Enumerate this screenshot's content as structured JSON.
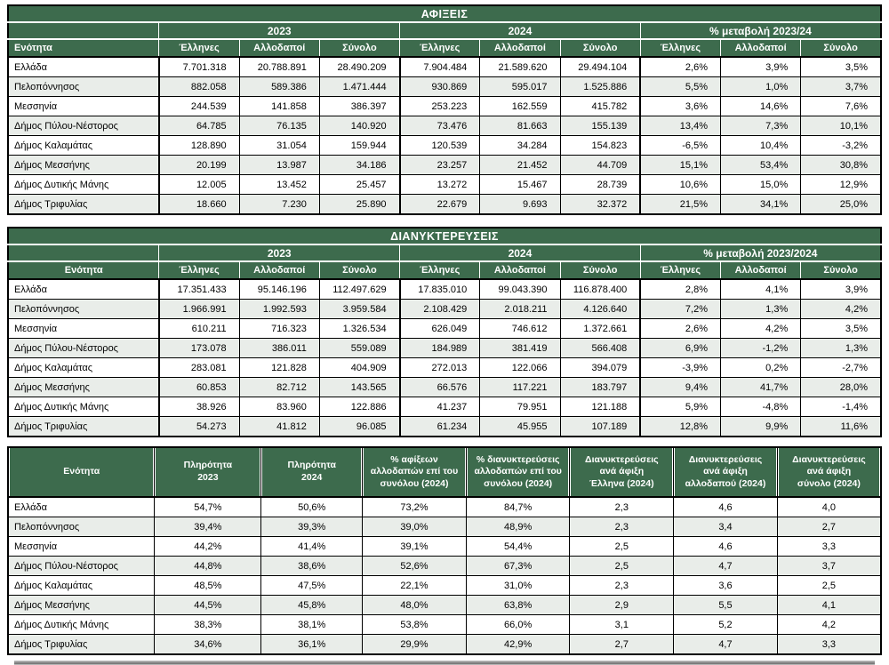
{
  "colors": {
    "header_green": "#3d6b4d",
    "row_alternate": "#e9ede9",
    "grid_line": "#000000"
  },
  "arrivals": {
    "title": "ΑΦΙΞΕΙΣ",
    "entity_header": "Ενότητα",
    "groups": [
      "2023",
      "2024",
      "% μεταβολή 2023/24"
    ],
    "sub_headers": [
      "Έλληνες",
      "Αλλοδαποί",
      "Σύνολο"
    ],
    "rows": [
      {
        "name": "Ελλάδα",
        "values": [
          "7.701.318",
          "20.788.891",
          "28.490.209",
          "7.904.484",
          "21.589.620",
          "29.494.104",
          "2,6%",
          "3,9%",
          "3,5%"
        ]
      },
      {
        "name": "Πελοπόννησος",
        "values": [
          "882.058",
          "589.386",
          "1.471.444",
          "930.869",
          "595.017",
          "1.525.886",
          "5,5%",
          "1,0%",
          "3,7%"
        ]
      },
      {
        "name": "Μεσσηνία",
        "values": [
          "244.539",
          "141.858",
          "386.397",
          "253.223",
          "162.559",
          "415.782",
          "3,6%",
          "14,6%",
          "7,6%"
        ]
      },
      {
        "name": "Δήμος Πύλου-Νέστορος",
        "values": [
          "64.785",
          "76.135",
          "140.920",
          "73.476",
          "81.663",
          "155.139",
          "13,4%",
          "7,3%",
          "10,1%"
        ]
      },
      {
        "name": "Δήμος Καλαμάτας",
        "values": [
          "128.890",
          "31.054",
          "159.944",
          "120.539",
          "34.284",
          "154.823",
          "-6,5%",
          "10,4%",
          "-3,2%"
        ]
      },
      {
        "name": "Δήμος Μεσσήνης",
        "values": [
          "20.199",
          "13.987",
          "34.186",
          "23.257",
          "21.452",
          "44.709",
          "15,1%",
          "53,4%",
          "30,8%"
        ]
      },
      {
        "name": "Δήμος Δυτικής Μάνης",
        "values": [
          "12.005",
          "13.452",
          "25.457",
          "13.272",
          "15.467",
          "28.739",
          "10,6%",
          "15,0%",
          "12,9%"
        ]
      },
      {
        "name": "Δήμος Τριφυλίας",
        "values": [
          "18.660",
          "7.230",
          "25.890",
          "22.679",
          "9.693",
          "32.372",
          "21,5%",
          "34,1%",
          "25,0%"
        ]
      }
    ]
  },
  "overnights": {
    "title": "ΔΙΑΝΥΚΤΕΡΕΥΣΕΙΣ",
    "entity_header": "Ενότητα",
    "groups": [
      "2023",
      "2024",
      "% μεταβολή 2023/2024"
    ],
    "sub_headers": [
      "Έλληνες",
      "Αλλοδαποί",
      "Σύνολο"
    ],
    "rows": [
      {
        "name": "Ελλάδα",
        "values": [
          "17.351.433",
          "95.146.196",
          "112.497.629",
          "17.835.010",
          "99.043.390",
          "116.878.400",
          "2,8%",
          "4,1%",
          "3,9%"
        ]
      },
      {
        "name": "Πελοπόννησος",
        "values": [
          "1.966.991",
          "1.992.593",
          "3.959.584",
          "2.108.429",
          "2.018.211",
          "4.126.640",
          "7,2%",
          "1,3%",
          "4,2%"
        ]
      },
      {
        "name": "Μεσσηνία",
        "values": [
          "610.211",
          "716.323",
          "1.326.534",
          "626.049",
          "746.612",
          "1.372.661",
          "2,6%",
          "4,2%",
          "3,5%"
        ]
      },
      {
        "name": "Δήμος Πύλου-Νέστορος",
        "values": [
          "173.078",
          "386.011",
          "559.089",
          "184.989",
          "381.419",
          "566.408",
          "6,9%",
          "-1,2%",
          "1,3%"
        ]
      },
      {
        "name": "Δήμος Καλαμάτας",
        "values": [
          "283.081",
          "121.828",
          "404.909",
          "272.013",
          "122.066",
          "394.079",
          "-3,9%",
          "0,2%",
          "-2,7%"
        ]
      },
      {
        "name": "Δήμος Μεσσήνης",
        "values": [
          "60.853",
          "82.712",
          "143.565",
          "66.576",
          "117.221",
          "183.797",
          "9,4%",
          "41,7%",
          "28,0%"
        ]
      },
      {
        "name": "Δήμος Δυτικής Μάνης",
        "values": [
          "38.926",
          "83.960",
          "122.886",
          "41.237",
          "79.951",
          "121.188",
          "5,9%",
          "-4,8%",
          "-1,4%"
        ]
      },
      {
        "name": "Δήμος Τριφυλίας",
        "values": [
          "54.273",
          "41.812",
          "96.085",
          "61.234",
          "45.955",
          "107.189",
          "12,8%",
          "9,9%",
          "11,6%"
        ]
      }
    ]
  },
  "metrics": {
    "headers": [
      "Ενότητα",
      "Πληρότητα\n2023",
      "Πληρότητα\n2024",
      "% αφίξεων\nαλλοδαπών επί του\nσυνόλου (2024)",
      "% διανυκτερεύσεις\nαλλοδαπών επί του\nσυνόλου (2024)",
      "Διανυκτερεύσεις\nανά άφιξη\nΈλληνα (2024)",
      "Διανυκτερεύσεις\nανά άφιξη\nαλλοδαπού (2024)",
      "Διανυκτερεύσεις\nανά άφιξη\nσύνολο (2024)"
    ],
    "rows": [
      {
        "name": "Ελλάδα",
        "values": [
          "54,7%",
          "50,6%",
          "73,2%",
          "84,7%",
          "2,3",
          "4,6",
          "4,0"
        ]
      },
      {
        "name": "Πελοπόννησος",
        "values": [
          "39,4%",
          "39,3%",
          "39,0%",
          "48,9%",
          "2,3",
          "3,4",
          "2,7"
        ]
      },
      {
        "name": "Μεσσηνία",
        "values": [
          "44,2%",
          "41,4%",
          "39,1%",
          "54,4%",
          "2,5",
          "4,6",
          "3,3"
        ]
      },
      {
        "name": "Δήμος Πύλου-Νέστορος",
        "values": [
          "44,8%",
          "38,6%",
          "52,6%",
          "67,3%",
          "2,5",
          "4,7",
          "3,7"
        ]
      },
      {
        "name": "Δήμος Καλαμάτας",
        "values": [
          "48,5%",
          "47,5%",
          "22,1%",
          "31,0%",
          "2,3",
          "3,6",
          "2,5"
        ]
      },
      {
        "name": "Δήμος Μεσσήνης",
        "values": [
          "44,5%",
          "45,8%",
          "48,0%",
          "63,8%",
          "2,9",
          "5,5",
          "4,1"
        ]
      },
      {
        "name": "Δήμος Δυτικής Μάνης",
        "values": [
          "38,3%",
          "38,1%",
          "53,8%",
          "66,0%",
          "3,1",
          "5,2",
          "4,2"
        ]
      },
      {
        "name": "Δήμος Τριφυλίας",
        "values": [
          "34,6%",
          "36,1%",
          "29,9%",
          "42,9%",
          "2,7",
          "4,7",
          "3,3"
        ]
      }
    ]
  }
}
